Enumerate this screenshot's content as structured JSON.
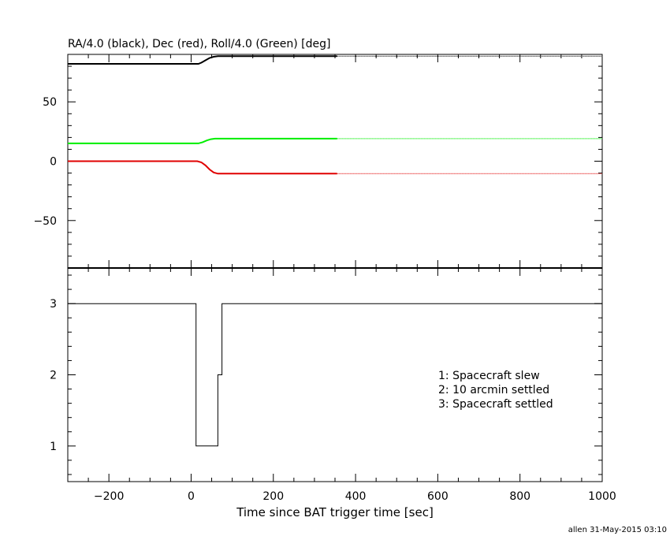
{
  "chart_data": [
    {
      "type": "line",
      "title": "RA/4.0 (black), Dec (red), Roll/4.0 (Green) [deg]",
      "xlim": [
        -300,
        1000
      ],
      "ylim": [
        -90,
        90
      ],
      "yticks": [
        -50,
        0,
        50
      ],
      "grid": false,
      "series": [
        {
          "color": "#000000",
          "points": [
            [
              -300,
              82
            ],
            [
              18,
              82
            ],
            [
              25,
              83
            ],
            [
              35,
              85
            ],
            [
              45,
              87
            ],
            [
              55,
              88
            ],
            [
              65,
              88.5
            ],
            [
              355,
              88.5
            ],
            [
              1000,
              88.5
            ]
          ],
          "dotted_after": 355
        },
        {
          "color": "#e00000",
          "points": [
            [
              -300,
              0
            ],
            [
              15,
              0
            ],
            [
              25,
              -1
            ],
            [
              35,
              -3.5
            ],
            [
              45,
              -7
            ],
            [
              55,
              -9.5
            ],
            [
              65,
              -10.5
            ],
            [
              355,
              -10.5
            ],
            [
              1000,
              -10.5
            ]
          ],
          "dotted_after": 355
        },
        {
          "color": "#00ee00",
          "points": [
            [
              -300,
              15
            ],
            [
              18,
              15
            ],
            [
              28,
              16
            ],
            [
              38,
              17.5
            ],
            [
              48,
              18.5
            ],
            [
              58,
              19
            ],
            [
              355,
              19
            ],
            [
              1000,
              19
            ]
          ],
          "dotted_after": 355
        }
      ]
    },
    {
      "type": "line",
      "step": true,
      "xlabel": "Time since BAT trigger time [sec]",
      "xlim": [
        -300,
        1000
      ],
      "ylim": [
        0.5,
        3.5
      ],
      "xticks": [
        -200,
        0,
        200,
        400,
        600,
        800,
        1000
      ],
      "yticks": [
        1,
        2,
        3
      ],
      "grid": false,
      "series": [
        {
          "color": "#000000",
          "points": [
            [
              -300,
              3
            ],
            [
              12,
              3
            ],
            [
              12,
              1
            ],
            [
              65,
              1
            ],
            [
              65,
              2
            ],
            [
              75,
              2
            ],
            [
              75,
              3
            ],
            [
              1000,
              3
            ]
          ]
        }
      ],
      "annotations": [
        "1: Spacecraft slew",
        "2: 10 arcmin settled",
        "3: Spacecraft settled"
      ]
    }
  ],
  "footer": {
    "credit": "allen 31-May-2015 03:10"
  }
}
